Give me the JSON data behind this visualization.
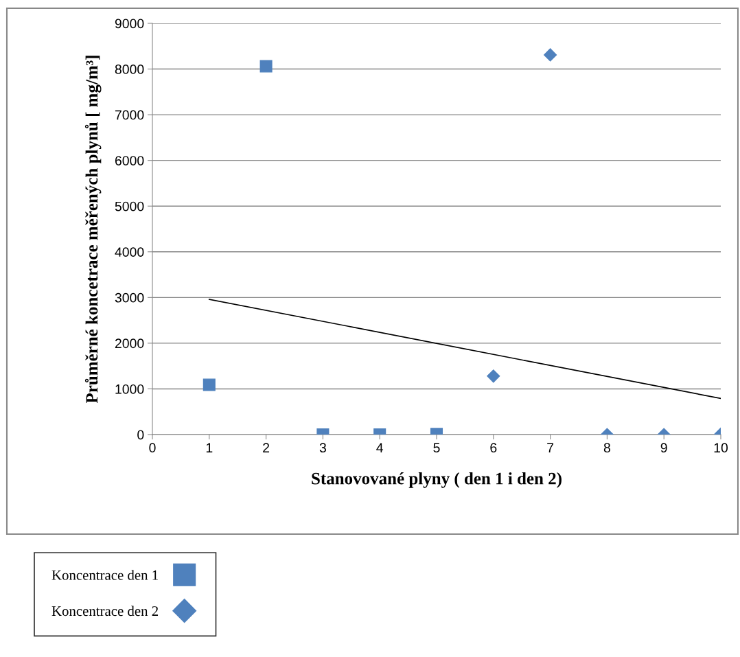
{
  "chart_data": {
    "type": "scatter",
    "xlabel": "Stanovované plyny ( den 1 i den 2)",
    "ylabel": "Průměrné koncetrace měřených plynů [ mg/m³]",
    "xlim": [
      0,
      10
    ],
    "xticks": [
      0,
      1,
      2,
      3,
      4,
      5,
      6,
      7,
      8,
      9,
      10
    ],
    "ylim": [
      0,
      9000
    ],
    "yticks": [
      0,
      1000,
      2000,
      3000,
      4000,
      5000,
      6000,
      7000,
      8000,
      9000
    ],
    "grid": "y",
    "legend": "bottom left",
    "series": [
      {
        "name": "Koncentrace den 1",
        "color": "#4f81bd",
        "marker": "square",
        "x": [
          1,
          2,
          3,
          4,
          5
        ],
        "values": [
          1090,
          8060,
          0,
          0,
          10
        ]
      },
      {
        "name": "Koncentrace den 2",
        "color": "#4f81bd",
        "marker": "diamond",
        "x": [
          6,
          7,
          8,
          9,
          10
        ],
        "values": [
          1280,
          8310,
          0,
          0,
          10
        ]
      },
      {
        "type": "line",
        "color": "#000000",
        "marker": "none",
        "x": [
          1,
          10
        ],
        "values": [
          2960,
          790
        ]
      }
    ]
  }
}
